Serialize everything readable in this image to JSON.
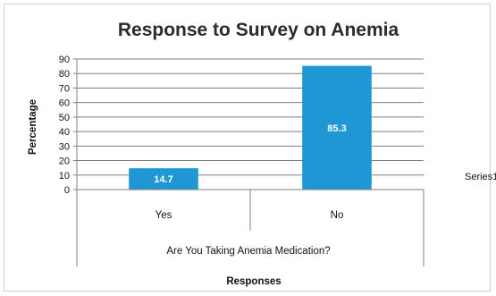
{
  "chart_data": {
    "type": "bar",
    "title": "Response to Survey on Anemia",
    "categories": [
      "Yes",
      "No"
    ],
    "series": [
      {
        "name": "Series1",
        "values": [
          14.7,
          85.3
        ],
        "color": "#1f97d4"
      }
    ],
    "data_labels": [
      "14.7",
      "85.3"
    ],
    "ylabel": "Percentage",
    "xlabel": "Responses",
    "x_group_label": "Are You Taking Anemia Medication?",
    "ylim": [
      0,
      90
    ],
    "yticks": [
      0,
      10,
      20,
      30,
      40,
      50,
      60,
      70,
      80,
      90
    ],
    "grid": true,
    "legend": "right"
  }
}
